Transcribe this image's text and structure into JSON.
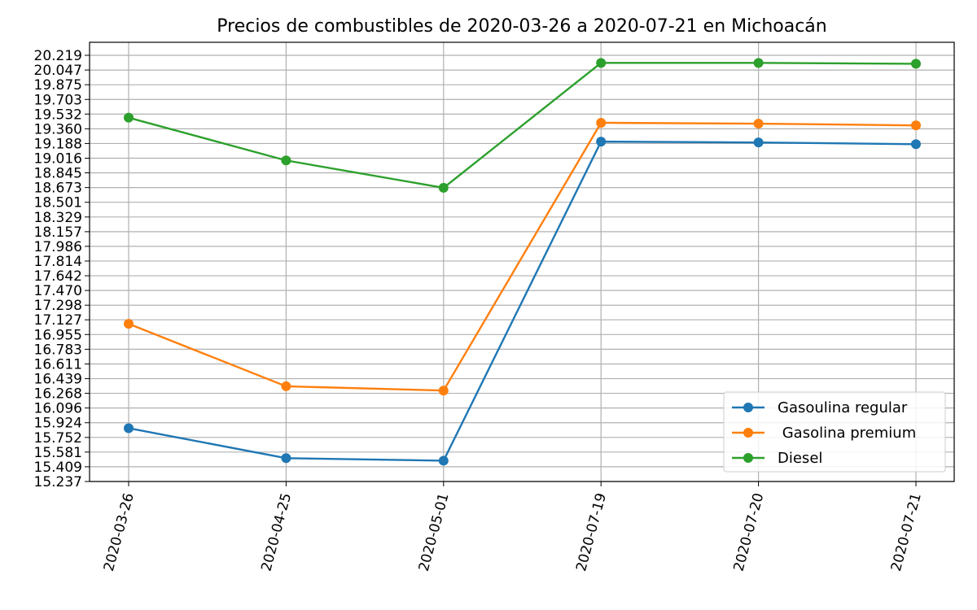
{
  "chart_data": {
    "type": "line",
    "title": "Precios de combustibles de 2020-03-26 a 2020-07-21 en Michoacán",
    "xlabel": "",
    "ylabel": "",
    "categories": [
      "2020-03-26",
      "2020-04-25",
      "2020-05-01",
      "2020-07-19",
      "2020-07-20",
      "2020-07-21"
    ],
    "y_ticks": [
      "15.237",
      "15.409",
      "15.581",
      "15.752",
      "15.924",
      "16.096",
      "16.268",
      "16.439",
      "16.611",
      "16.783",
      "16.955",
      "17.127",
      "17.298",
      "17.470",
      "17.642",
      "17.814",
      "17.986",
      "18.157",
      "18.329",
      "18.501",
      "18.673",
      "18.845",
      "19.016",
      "19.188",
      "19.360",
      "19.532",
      "19.703",
      "19.875",
      "20.047",
      "20.219"
    ],
    "ylim": [
      15.237,
      20.219
    ],
    "grid": true,
    "legend_position": "bottom-right",
    "series": [
      {
        "name": "Gasoulina regular",
        "color": "#1f77b4",
        "values": [
          15.86,
          15.51,
          15.48,
          19.21,
          19.2,
          19.18
        ]
      },
      {
        "name": " Gasolina premium",
        "color": "#ff7f0e",
        "values": [
          17.08,
          16.35,
          16.3,
          19.43,
          19.42,
          19.4
        ]
      },
      {
        "name": "Diesel",
        "color": "#2ca02c",
        "values": [
          19.49,
          18.99,
          18.67,
          20.13,
          20.13,
          20.12
        ]
      }
    ]
  }
}
